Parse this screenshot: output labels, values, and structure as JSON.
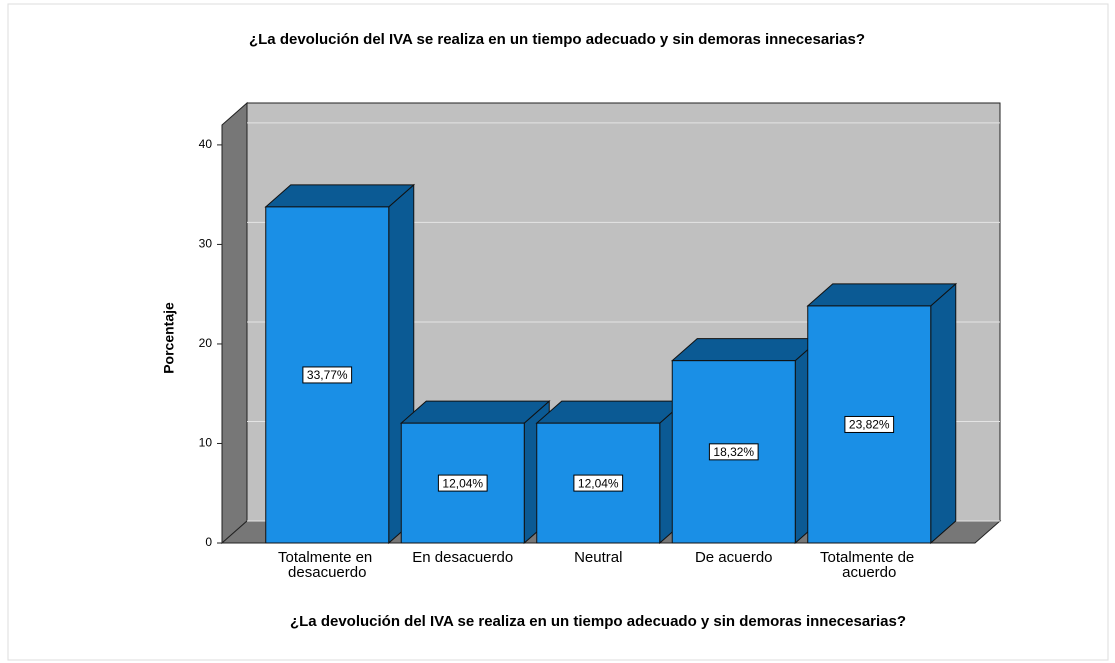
{
  "chart_data": {
    "type": "bar3d",
    "title": "¿La devolución del IVA se realiza en un tiempo adecuado y sin demoras innecesarias?",
    "x_label": "¿La devolución del IVA se realiza en un tiempo adecuado y sin demoras innecesarias?",
    "y_label": "Porcentaje",
    "categories": [
      "Totalmente en desacuerdo",
      "En desacuerdo",
      "Neutral",
      "De acuerdo",
      "Totalmente de acuerdo"
    ],
    "values": [
      33.77,
      12.04,
      12.04,
      18.32,
      23.82
    ],
    "value_labels": [
      "33,77%",
      "12,04%",
      "12,04%",
      "18,32%",
      "23,82%"
    ],
    "color": "#1a8fe6",
    "ylim": [
      0,
      42
    ],
    "yticks": [
      0,
      10,
      20,
      30,
      40
    ],
    "grid": true
  }
}
